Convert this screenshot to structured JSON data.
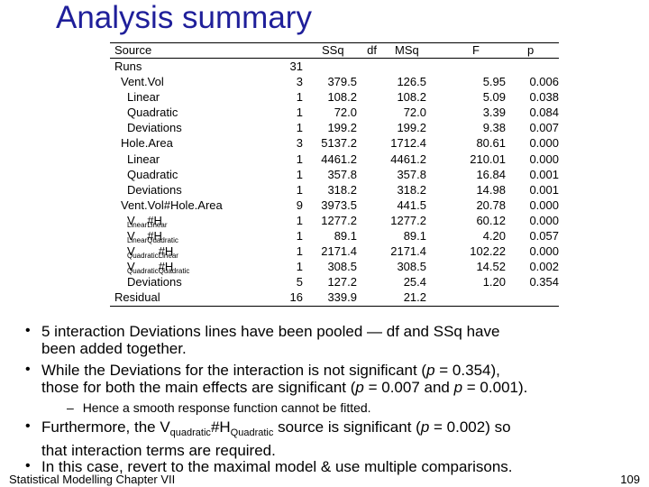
{
  "title": "Analysis summary",
  "table": {
    "headers": [
      "Source",
      "df",
      "SSq",
      "MSq",
      "F",
      "p"
    ],
    "rows": [
      {
        "source": "Runs",
        "indent": 0,
        "df": "31",
        "ssq": "",
        "msq": "",
        "f": "",
        "p": ""
      },
      {
        "source": "Vent.Vol",
        "indent": 1,
        "df": "3",
        "ssq": "379.5",
        "msq": "126.5",
        "f": "5.95",
        "p": "0.006"
      },
      {
        "source": "Linear",
        "indent": 2,
        "df": "1",
        "ssq": "108.2",
        "msq": "108.2",
        "f": "5.09",
        "p": "0.038"
      },
      {
        "source": "Quadratic",
        "indent": 2,
        "df": "1",
        "ssq": "72.0",
        "msq": "72.0",
        "f": "3.39",
        "p": "0.084"
      },
      {
        "source": "Deviations",
        "indent": 2,
        "df": "1",
        "ssq": "199.2",
        "msq": "199.2",
        "f": "9.38",
        "p": "0.007"
      },
      {
        "source": "Hole.Area",
        "indent": 1,
        "df": "3",
        "ssq": "5137.2",
        "msq": "1712.4",
        "f": "80.61",
        "p": "0.000"
      },
      {
        "source": "Linear",
        "indent": 2,
        "df": "1",
        "ssq": "4461.2",
        "msq": "4461.2",
        "f": "210.01",
        "p": "0.000"
      },
      {
        "source": "Quadratic",
        "indent": 2,
        "df": "1",
        "ssq": "357.8",
        "msq": "357.8",
        "f": "16.84",
        "p": "0.001"
      },
      {
        "source": "Deviations",
        "indent": 2,
        "df": "1",
        "ssq": "318.2",
        "msq": "318.2",
        "f": "14.98",
        "p": "0.001"
      },
      {
        "source": "Vent.Vol#Hole.Area",
        "indent": 1,
        "df": "9",
        "ssq": "3973.5",
        "msq": "441.5",
        "f": "20.78",
        "p": "0.000"
      },
      {
        "source_v": "V",
        "source_vsub": "Linear",
        "source_h": "#H",
        "source_hsub": "Linear",
        "indent": 2,
        "df": "1",
        "ssq": "1277.2",
        "msq": "1277.2",
        "f": "60.12",
        "p": "0.000"
      },
      {
        "source_v": "V",
        "source_vsub": "Linear",
        "source_h": "#H",
        "source_hsub": "Quadratic",
        "indent": 2,
        "df": "1",
        "ssq": "89.1",
        "msq": "89.1",
        "f": "4.20",
        "p": "0.057"
      },
      {
        "source_v": "V",
        "source_vsub": "Quadratic",
        "source_h": "#H",
        "source_hsub": "Linear",
        "indent": 2,
        "df": "1",
        "ssq": "2171.4",
        "msq": "2171.4",
        "f": "102.22",
        "p": "0.000"
      },
      {
        "source_v": "V",
        "source_vsub": "Quadratic",
        "source_h": "#H",
        "source_hsub": "Quadratic",
        "indent": 2,
        "df": "1",
        "ssq": "308.5",
        "msq": "308.5",
        "f": "14.52",
        "p": "0.002"
      },
      {
        "source": "Deviations",
        "indent": 2,
        "df": "5",
        "ssq": "127.2",
        "msq": "25.4",
        "f": "1.20",
        "p": "0.354"
      },
      {
        "source": "Residual",
        "indent": 0,
        "df": "16",
        "ssq": "339.9",
        "msq": "21.2",
        "f": "",
        "p": ""
      }
    ]
  },
  "bullets": {
    "b1_line1": "5 interaction Deviations lines have been pooled — df and SSq have",
    "b1_line2": "been added together.",
    "b2_line1a": "While the Deviations for the interaction is not significant (",
    "b2_p": "p",
    "b2_line1b": " = 0.354),",
    "b2_line2a": "those for both the main effects are significant (",
    "b2_p2": "p",
    "b2_line2b": " = 0.007 and ",
    "b2_p3": "p",
    "b2_line2c": " = 0.001).",
    "sub1": "Hence a smooth response function cannot be fitted.",
    "b3_a": "Furthermore, the V",
    "b3_vsub": "quadratic",
    "b3_h": "#H",
    "b3_hsub": "Quadratic",
    "b3_b": " source is significant (",
    "b3_p": "p",
    "b3_c": " = 0.002) so",
    "b3_line2": "that interaction terms are required.",
    "b4": "In this case, revert to the maximal model & use multiple comparisons.",
    "bullet_char": "•",
    "dash_char": "–"
  },
  "footer": {
    "left": "Statistical Modelling   Chapter VII",
    "page": "109"
  }
}
